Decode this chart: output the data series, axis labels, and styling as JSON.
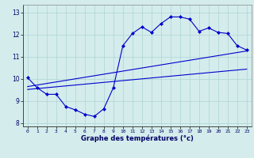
{
  "xlabel": "Graphe des températures (°c)",
  "bg_color": "#d4ecec",
  "grid_color": "#aed4d4",
  "line_color": "#0000cc",
  "xlim": [
    -0.5,
    23.5
  ],
  "ylim": [
    7.85,
    13.35
  ],
  "xticks": [
    0,
    1,
    2,
    3,
    4,
    5,
    6,
    7,
    8,
    9,
    10,
    11,
    12,
    13,
    14,
    15,
    16,
    17,
    18,
    19,
    20,
    21,
    22,
    23
  ],
  "yticks": [
    8,
    9,
    10,
    11,
    12,
    13
  ],
  "hours": [
    0,
    1,
    2,
    3,
    4,
    5,
    6,
    7,
    8,
    9,
    10,
    11,
    12,
    13,
    14,
    15,
    16,
    17,
    18,
    19,
    20,
    21,
    22,
    23
  ],
  "temp_main": [
    10.05,
    9.6,
    9.3,
    9.3,
    8.75,
    8.6,
    8.4,
    8.3,
    8.65,
    9.6,
    11.5,
    12.05,
    12.35,
    12.1,
    12.5,
    12.8,
    12.8,
    12.7,
    12.15,
    12.3,
    12.1,
    12.05,
    11.5,
    11.3
  ],
  "temp_upper_linear": [
    9.65,
    9.72,
    9.79,
    9.86,
    9.93,
    10.0,
    10.07,
    10.14,
    10.21,
    10.28,
    10.35,
    10.42,
    10.49,
    10.56,
    10.63,
    10.7,
    10.77,
    10.84,
    10.91,
    10.98,
    11.05,
    11.12,
    11.19,
    11.26
  ],
  "temp_lower_linear": [
    9.52,
    9.56,
    9.6,
    9.64,
    9.68,
    9.72,
    9.76,
    9.8,
    9.84,
    9.88,
    9.92,
    9.96,
    10.0,
    10.04,
    10.08,
    10.12,
    10.16,
    10.2,
    10.24,
    10.28,
    10.32,
    10.36,
    10.4,
    10.44
  ]
}
